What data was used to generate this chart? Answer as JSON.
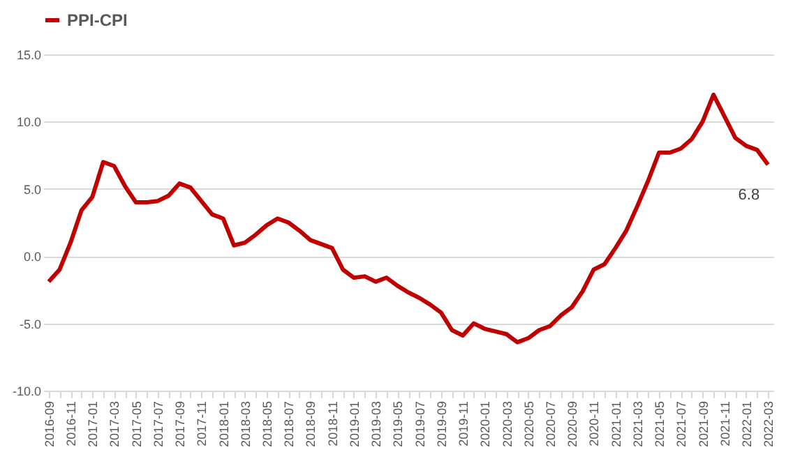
{
  "chart_data": {
    "type": "line",
    "categories": [
      "2016-09",
      null,
      "2016-11",
      null,
      "2017-01",
      null,
      "2017-03",
      null,
      "2017-05",
      null,
      "2017-07",
      null,
      "2017-09",
      null,
      "2017-11",
      null,
      "2018-01",
      null,
      "2018-03",
      null,
      "2018-05",
      null,
      "2018-07",
      null,
      "2018-09",
      null,
      "2018-11",
      null,
      "2019-01",
      null,
      "2019-03",
      null,
      "2019-05",
      null,
      "2019-07",
      null,
      "2019-09",
      null,
      "2019-11",
      null,
      "2020-01",
      null,
      "2020-03",
      null,
      "2020-05",
      null,
      "2020-07",
      null,
      "2020-09",
      null,
      "2020-11",
      null,
      "2021-01",
      null,
      "2021-03",
      null,
      "2021-05",
      null,
      "2021-07",
      null,
      "2021-09",
      null,
      "2021-11",
      null,
      "2022-01",
      null,
      "2022-03"
    ],
    "series": [
      {
        "name": "PPI-CPI",
        "color": "#c00000",
        "values": [
          -1.9,
          -1.0,
          1.0,
          3.4,
          4.4,
          7.0,
          6.7,
          5.2,
          4.0,
          4.0,
          4.1,
          4.5,
          5.4,
          5.1,
          4.1,
          3.1,
          2.8,
          0.8,
          1.0,
          1.6,
          2.3,
          2.8,
          2.5,
          1.9,
          1.2,
          0.9,
          0.6,
          -1.0,
          -1.6,
          -1.5,
          -1.9,
          -1.6,
          -2.2,
          -2.7,
          -3.1,
          -3.6,
          -4.2,
          -5.5,
          -5.9,
          -5.0,
          -5.4,
          -5.6,
          -5.8,
          -6.4,
          -6.1,
          -5.5,
          -5.2,
          -4.4,
          -3.8,
          -2.6,
          -1.0,
          -0.6,
          0.6,
          1.9,
          3.7,
          5.6,
          7.7,
          7.7,
          8.0,
          8.7,
          10.0,
          12.0,
          10.4,
          8.8,
          8.2,
          7.9,
          6.8
        ],
        "value_labels": [
          null,
          null,
          null,
          null,
          null,
          null,
          null,
          null,
          null,
          null,
          null,
          null,
          null,
          null,
          null,
          null,
          null,
          null,
          null,
          null,
          null,
          null,
          null,
          null,
          null,
          null,
          null,
          null,
          null,
          null,
          null,
          null,
          null,
          null,
          null,
          null,
          null,
          null,
          null,
          null,
          null,
          null,
          null,
          null,
          null,
          null,
          null,
          null,
          null,
          null,
          null,
          null,
          null,
          null,
          null,
          null,
          null,
          null,
          null,
          null,
          null,
          null,
          null,
          null,
          null,
          null,
          "6.8"
        ]
      }
    ],
    "ylim": [
      -10,
      15
    ],
    "yticks": [
      {
        "value": -10,
        "label": "-10.0"
      },
      {
        "value": -5,
        "label": "-5.0"
      },
      {
        "value": 0,
        "label": "0.0"
      },
      {
        "value": 5,
        "label": "5.0"
      },
      {
        "value": 10,
        "label": "10.0"
      },
      {
        "value": 15,
        "label": "15.0"
      }
    ],
    "grid": "y",
    "legend": "top",
    "line_style": "solid",
    "marker": "none"
  }
}
